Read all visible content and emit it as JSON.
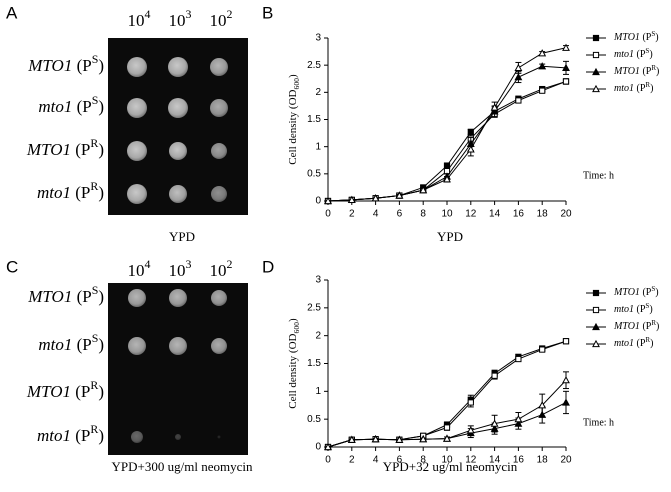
{
  "panels": [
    {
      "letter": "A",
      "dilutions": [
        "104",
        "103",
        "102"
      ],
      "strains": [
        "MTO1 (PS)",
        "mto1 (PS)",
        "MTO1 (PR)",
        "mto1 (PR)"
      ],
      "caption": "YPD"
    },
    {
      "letter": "C",
      "dilutions": [
        "104",
        "103",
        "102"
      ],
      "strains": [
        "MTO1 (PS)",
        "mto1 (PS)",
        "MTO1 (PR)",
        "mto1 (PR)"
      ],
      "caption": "YPD+300 ug/ml neomycin"
    }
  ],
  "chart_data": [
    {
      "type": "line",
      "panel": "B",
      "xlabel": "YPD",
      "ylabel": "Cell density (OD600)",
      "annotation": "Time: h",
      "x": [
        0,
        2,
        4,
        6,
        8,
        10,
        12,
        14,
        16,
        18,
        20
      ],
      "xlim": [
        0,
        20
      ],
      "xticks": [
        0,
        2,
        4,
        6,
        8,
        10,
        12,
        14,
        16,
        18,
        20
      ],
      "ylim": [
        0,
        3
      ],
      "yticks": [
        0,
        0.5,
        1,
        1.5,
        2,
        2.5,
        3
      ],
      "series": [
        {
          "name": "MTO1 (PS)",
          "color": "#000000",
          "marker": "filled-square",
          "values": [
            0,
            0.02,
            0.05,
            0.1,
            0.25,
            0.65,
            1.27,
            1.65,
            1.88,
            2.06,
            2.2
          ],
          "errors": [
            0,
            0,
            0,
            0.02,
            0.03,
            0.05,
            0.05,
            0.08,
            0.05,
            0.04,
            0.05
          ]
        },
        {
          "name": "mto1 (PS)",
          "color": "#000000",
          "marker": "open-square",
          "values": [
            0,
            0.02,
            0.05,
            0.1,
            0.2,
            0.55,
            1.15,
            1.6,
            1.85,
            2.03,
            2.2
          ],
          "errors": [
            0,
            0,
            0,
            0.02,
            0.03,
            0.05,
            0.08,
            0.06,
            0.04,
            0.03,
            0.04
          ]
        },
        {
          "name": "MTO1 (PR)",
          "color": "#000000",
          "marker": "filled-triangle",
          "values": [
            0,
            0.02,
            0.05,
            0.1,
            0.2,
            0.45,
            1.05,
            1.65,
            2.28,
            2.48,
            2.45
          ],
          "errors": [
            0,
            0,
            0,
            0.02,
            0.03,
            0.05,
            0.12,
            0.1,
            0.1,
            0.04,
            0.12
          ]
        },
        {
          "name": "mto1 (PR)",
          "color": "#000000",
          "marker": "open-triangle",
          "values": [
            0,
            0.02,
            0.05,
            0.1,
            0.2,
            0.4,
            0.95,
            1.72,
            2.45,
            2.72,
            2.82
          ],
          "errors": [
            0,
            0,
            0,
            0.02,
            0.03,
            0.05,
            0.12,
            0.1,
            0.1,
            0.03,
            0.04
          ]
        }
      ]
    },
    {
      "type": "line",
      "panel": "D",
      "xlabel": "YPD+32 ug/ml neomycin",
      "ylabel": "Cell density (OD600)",
      "annotation": "Time: h",
      "x": [
        0,
        2,
        4,
        6,
        8,
        10,
        12,
        14,
        16,
        18,
        20
      ],
      "xlim": [
        0,
        20
      ],
      "xticks": [
        0,
        2,
        4,
        6,
        8,
        10,
        12,
        14,
        16,
        18,
        20
      ],
      "ylim": [
        0,
        3
      ],
      "yticks": [
        0,
        0.5,
        1,
        1.5,
        2,
        2.5,
        3
      ],
      "series": [
        {
          "name": "MTO1 (PS)",
          "color": "#000000",
          "marker": "filled-square",
          "values": [
            0,
            0.13,
            0.14,
            0.13,
            0.2,
            0.4,
            0.85,
            1.32,
            1.62,
            1.77,
            1.9
          ],
          "errors": [
            0,
            0.01,
            0.01,
            0.01,
            0.02,
            0.05,
            0.08,
            0.06,
            0.04,
            0.03,
            0.02
          ]
        },
        {
          "name": "mto1 (PS)",
          "color": "#000000",
          "marker": "open-square",
          "values": [
            0,
            0.13,
            0.14,
            0.13,
            0.2,
            0.35,
            0.8,
            1.28,
            1.58,
            1.75,
            1.9
          ],
          "errors": [
            0,
            0.01,
            0.01,
            0.01,
            0.02,
            0.05,
            0.08,
            0.06,
            0.04,
            0.03,
            0.02
          ]
        },
        {
          "name": "MTO1 (PR)",
          "color": "#000000",
          "marker": "filled-triangle",
          "values": [
            0,
            0.13,
            0.14,
            0.13,
            0.14,
            0.15,
            0.25,
            0.33,
            0.42,
            0.58,
            0.8
          ],
          "errors": [
            0,
            0.01,
            0.01,
            0.01,
            0.02,
            0.03,
            0.08,
            0.1,
            0.1,
            0.15,
            0.2
          ]
        },
        {
          "name": "mto1 (PR)",
          "color": "#000000",
          "marker": "open-triangle",
          "values": [
            0,
            0.13,
            0.14,
            0.13,
            0.14,
            0.15,
            0.3,
            0.42,
            0.5,
            0.75,
            1.2
          ],
          "errors": [
            0,
            0.01,
            0.01,
            0.01,
            0.02,
            0.03,
            0.08,
            0.15,
            0.12,
            0.2,
            0.15
          ]
        }
      ]
    }
  ]
}
